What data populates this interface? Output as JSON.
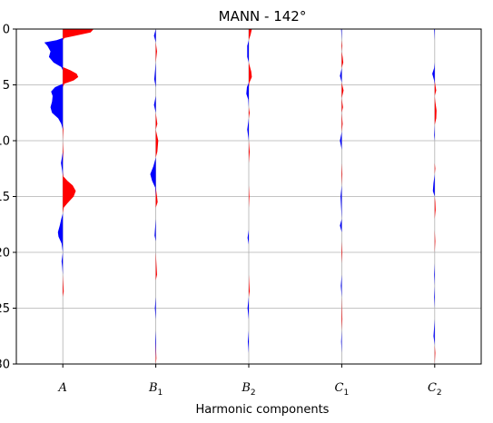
{
  "chart_data": {
    "type": "area",
    "title": "MANN - 142°",
    "xlabel": "Harmonic components",
    "ylabel": "",
    "categories": [
      {
        "base": "A",
        "sub": ""
      },
      {
        "base": "B",
        "sub": "1"
      },
      {
        "base": "B",
        "sub": "2"
      },
      {
        "base": "C",
        "sub": "1"
      },
      {
        "base": "C",
        "sub": "2"
      }
    ],
    "ylim": [
      0,
      30
    ],
    "y_inverted": true,
    "y_ticks": [
      0,
      5,
      10,
      15,
      20,
      25,
      30
    ],
    "grid": "horizontal and vertical",
    "colors": {
      "positive": "#ff0000",
      "negative": "#0000ff",
      "grid": "#b0b0b0"
    },
    "series": [
      {
        "points": [
          [
            0,
            1.0
          ],
          [
            0.3,
            0.9
          ],
          [
            0.6,
            0.4
          ],
          [
            0.8,
            0.05
          ],
          [
            1.0,
            -0.2
          ],
          [
            1.2,
            -0.6
          ],
          [
            1.5,
            -0.5
          ],
          [
            2.0,
            -0.4
          ],
          [
            2.5,
            -0.45
          ],
          [
            3.0,
            -0.3
          ],
          [
            3.4,
            -0.05
          ],
          [
            3.7,
            0.25
          ],
          [
            4.0,
            0.45
          ],
          [
            4.3,
            0.5
          ],
          [
            4.6,
            0.35
          ],
          [
            4.9,
            0.05
          ],
          [
            5.2,
            -0.25
          ],
          [
            5.6,
            -0.38
          ],
          [
            6.0,
            -0.33
          ],
          [
            6.5,
            -0.35
          ],
          [
            7.0,
            -0.4
          ],
          [
            7.5,
            -0.35
          ],
          [
            8.0,
            -0.15
          ],
          [
            8.5,
            -0.05
          ],
          [
            9,
            0.02
          ],
          [
            10,
            0.0
          ],
          [
            11,
            0.02
          ],
          [
            12,
            -0.06
          ],
          [
            12.7,
            -0.02
          ],
          [
            13.2,
            0.02
          ],
          [
            13.6,
            0.15
          ],
          [
            14.0,
            0.32
          ],
          [
            14.5,
            0.42
          ],
          [
            15.0,
            0.35
          ],
          [
            15.6,
            0.15
          ],
          [
            16.0,
            0.03
          ],
          [
            16.5,
            0.0
          ],
          [
            17.0,
            -0.05
          ],
          [
            17.6,
            -0.1
          ],
          [
            18.2,
            -0.16
          ],
          [
            18.6,
            -0.14
          ],
          [
            19.2,
            -0.04
          ],
          [
            20,
            0.0
          ],
          [
            20.8,
            -0.04
          ],
          [
            21.3,
            -0.02
          ],
          [
            22,
            0.0
          ],
          [
            23.5,
            0.03
          ],
          [
            24,
            0.0
          ],
          [
            30,
            0.0
          ]
        ]
      },
      {
        "points": [
          [
            0,
            0.0
          ],
          [
            0.6,
            -0.06
          ],
          [
            1.2,
            0.0
          ],
          [
            2.0,
            0.04
          ],
          [
            3,
            0.0
          ],
          [
            4.5,
            -0.05
          ],
          [
            5.2,
            0.0
          ],
          [
            6,
            0.0
          ],
          [
            6.8,
            -0.06
          ],
          [
            7.5,
            0.0
          ],
          [
            8.5,
            0.05
          ],
          [
            9,
            0.0
          ],
          [
            10,
            0.08
          ],
          [
            11,
            0.05
          ],
          [
            11.5,
            0.0
          ],
          [
            12.3,
            -0.08
          ],
          [
            13.0,
            -0.18
          ],
          [
            13.6,
            -0.12
          ],
          [
            14.2,
            -0.02
          ],
          [
            15,
            0.04
          ],
          [
            15.5,
            0.06
          ],
          [
            16,
            0.0
          ],
          [
            17,
            0.0
          ],
          [
            18.5,
            -0.04
          ],
          [
            19,
            0.0
          ],
          [
            20,
            0.0
          ],
          [
            22,
            0.04
          ],
          [
            22.5,
            0.0
          ],
          [
            24,
            0.0
          ],
          [
            25,
            -0.03
          ],
          [
            26,
            0.0
          ],
          [
            27,
            0.0
          ],
          [
            28,
            -0.02
          ],
          [
            29.5,
            0.02
          ],
          [
            30,
            0.0
          ]
        ]
      },
      {
        "points": [
          [
            0,
            0.1
          ],
          [
            0.5,
            0.06
          ],
          [
            1.0,
            0.0
          ],
          [
            1.5,
            -0.05
          ],
          [
            2.5,
            -0.05
          ],
          [
            3,
            0.0
          ],
          [
            3.8,
            0.08
          ],
          [
            4.3,
            0.1
          ],
          [
            4.8,
            0.02
          ],
          [
            5.2,
            -0.06
          ],
          [
            5.8,
            -0.08
          ],
          [
            6.3,
            -0.02
          ],
          [
            7,
            0.0
          ],
          [
            7.5,
            0.03
          ],
          [
            8,
            0.0
          ],
          [
            9,
            -0.05
          ],
          [
            10,
            0.0
          ],
          [
            11,
            0.03
          ],
          [
            12,
            0.0
          ],
          [
            13,
            0.0
          ],
          [
            14,
            0.0
          ],
          [
            15,
            0.02
          ],
          [
            16,
            0.0
          ],
          [
            18,
            0.0
          ],
          [
            18.7,
            -0.04
          ],
          [
            19.3,
            0.0
          ],
          [
            22,
            0.0
          ],
          [
            23.5,
            0.03
          ],
          [
            24,
            0.0
          ],
          [
            25,
            -0.04
          ],
          [
            26,
            0.0
          ],
          [
            27,
            0.0
          ],
          [
            28,
            -0.03
          ],
          [
            29,
            0.0
          ],
          [
            30,
            0.0
          ]
        ]
      },
      {
        "points": [
          [
            0,
            -0.02
          ],
          [
            1,
            0.0
          ],
          [
            1.5,
            0.02
          ],
          [
            2,
            0.0
          ],
          [
            2.5,
            0.03
          ],
          [
            3.0,
            0.05
          ],
          [
            3.5,
            0.0
          ],
          [
            4.2,
            -0.06
          ],
          [
            4.8,
            0.0
          ],
          [
            5.5,
            0.06
          ],
          [
            6.2,
            0.0
          ],
          [
            7,
            0.04
          ],
          [
            7.5,
            0.0
          ],
          [
            8.5,
            0.03
          ],
          [
            9.2,
            0.0
          ],
          [
            10,
            -0.06
          ],
          [
            10.8,
            0.0
          ],
          [
            12,
            0.0
          ],
          [
            13,
            0.02
          ],
          [
            14,
            0.0
          ],
          [
            15,
            -0.04
          ],
          [
            16,
            -0.02
          ],
          [
            17,
            0.0
          ],
          [
            17.6,
            -0.06
          ],
          [
            18.2,
            0.0
          ],
          [
            19,
            0.0
          ],
          [
            20,
            0.02
          ],
          [
            21,
            0.0
          ],
          [
            22,
            0.0
          ],
          [
            23,
            -0.03
          ],
          [
            24,
            0.0
          ],
          [
            26,
            0.02
          ],
          [
            27,
            0.0
          ],
          [
            28,
            -0.02
          ],
          [
            29,
            0.0
          ],
          [
            30,
            0.0
          ]
        ]
      },
      {
        "points": [
          [
            0,
            -0.02
          ],
          [
            1,
            0.0
          ],
          [
            2,
            0.0
          ],
          [
            3,
            0.0
          ],
          [
            3.5,
            -0.02
          ],
          [
            4.0,
            -0.08
          ],
          [
            4.6,
            -0.02
          ],
          [
            5,
            0.02
          ],
          [
            5.5,
            0.05
          ],
          [
            6.0,
            0.0
          ],
          [
            6.5,
            0.02
          ],
          [
            7.3,
            0.06
          ],
          [
            8.0,
            0.05
          ],
          [
            8.6,
            0.0
          ],
          [
            9.5,
            -0.02
          ],
          [
            10,
            0.0
          ],
          [
            11,
            0.0
          ],
          [
            12,
            0.0
          ],
          [
            12.5,
            0.02
          ],
          [
            13,
            0.0
          ],
          [
            13.8,
            -0.04
          ],
          [
            14.5,
            -0.06
          ],
          [
            15,
            0.0
          ],
          [
            15.5,
            0.02
          ],
          [
            16.2,
            0.03
          ],
          [
            17,
            0.0
          ],
          [
            18,
            0.0
          ],
          [
            19,
            0.02
          ],
          [
            20,
            0.0
          ],
          [
            21,
            0.0
          ],
          [
            22,
            -0.02
          ],
          [
            23,
            0.0
          ],
          [
            24,
            -0.02
          ],
          [
            25,
            0.0
          ],
          [
            26,
            0.0
          ],
          [
            27.5,
            -0.04
          ],
          [
            28.3,
            0.0
          ],
          [
            29,
            0.02
          ],
          [
            30,
            0.0
          ]
        ]
      }
    ]
  }
}
